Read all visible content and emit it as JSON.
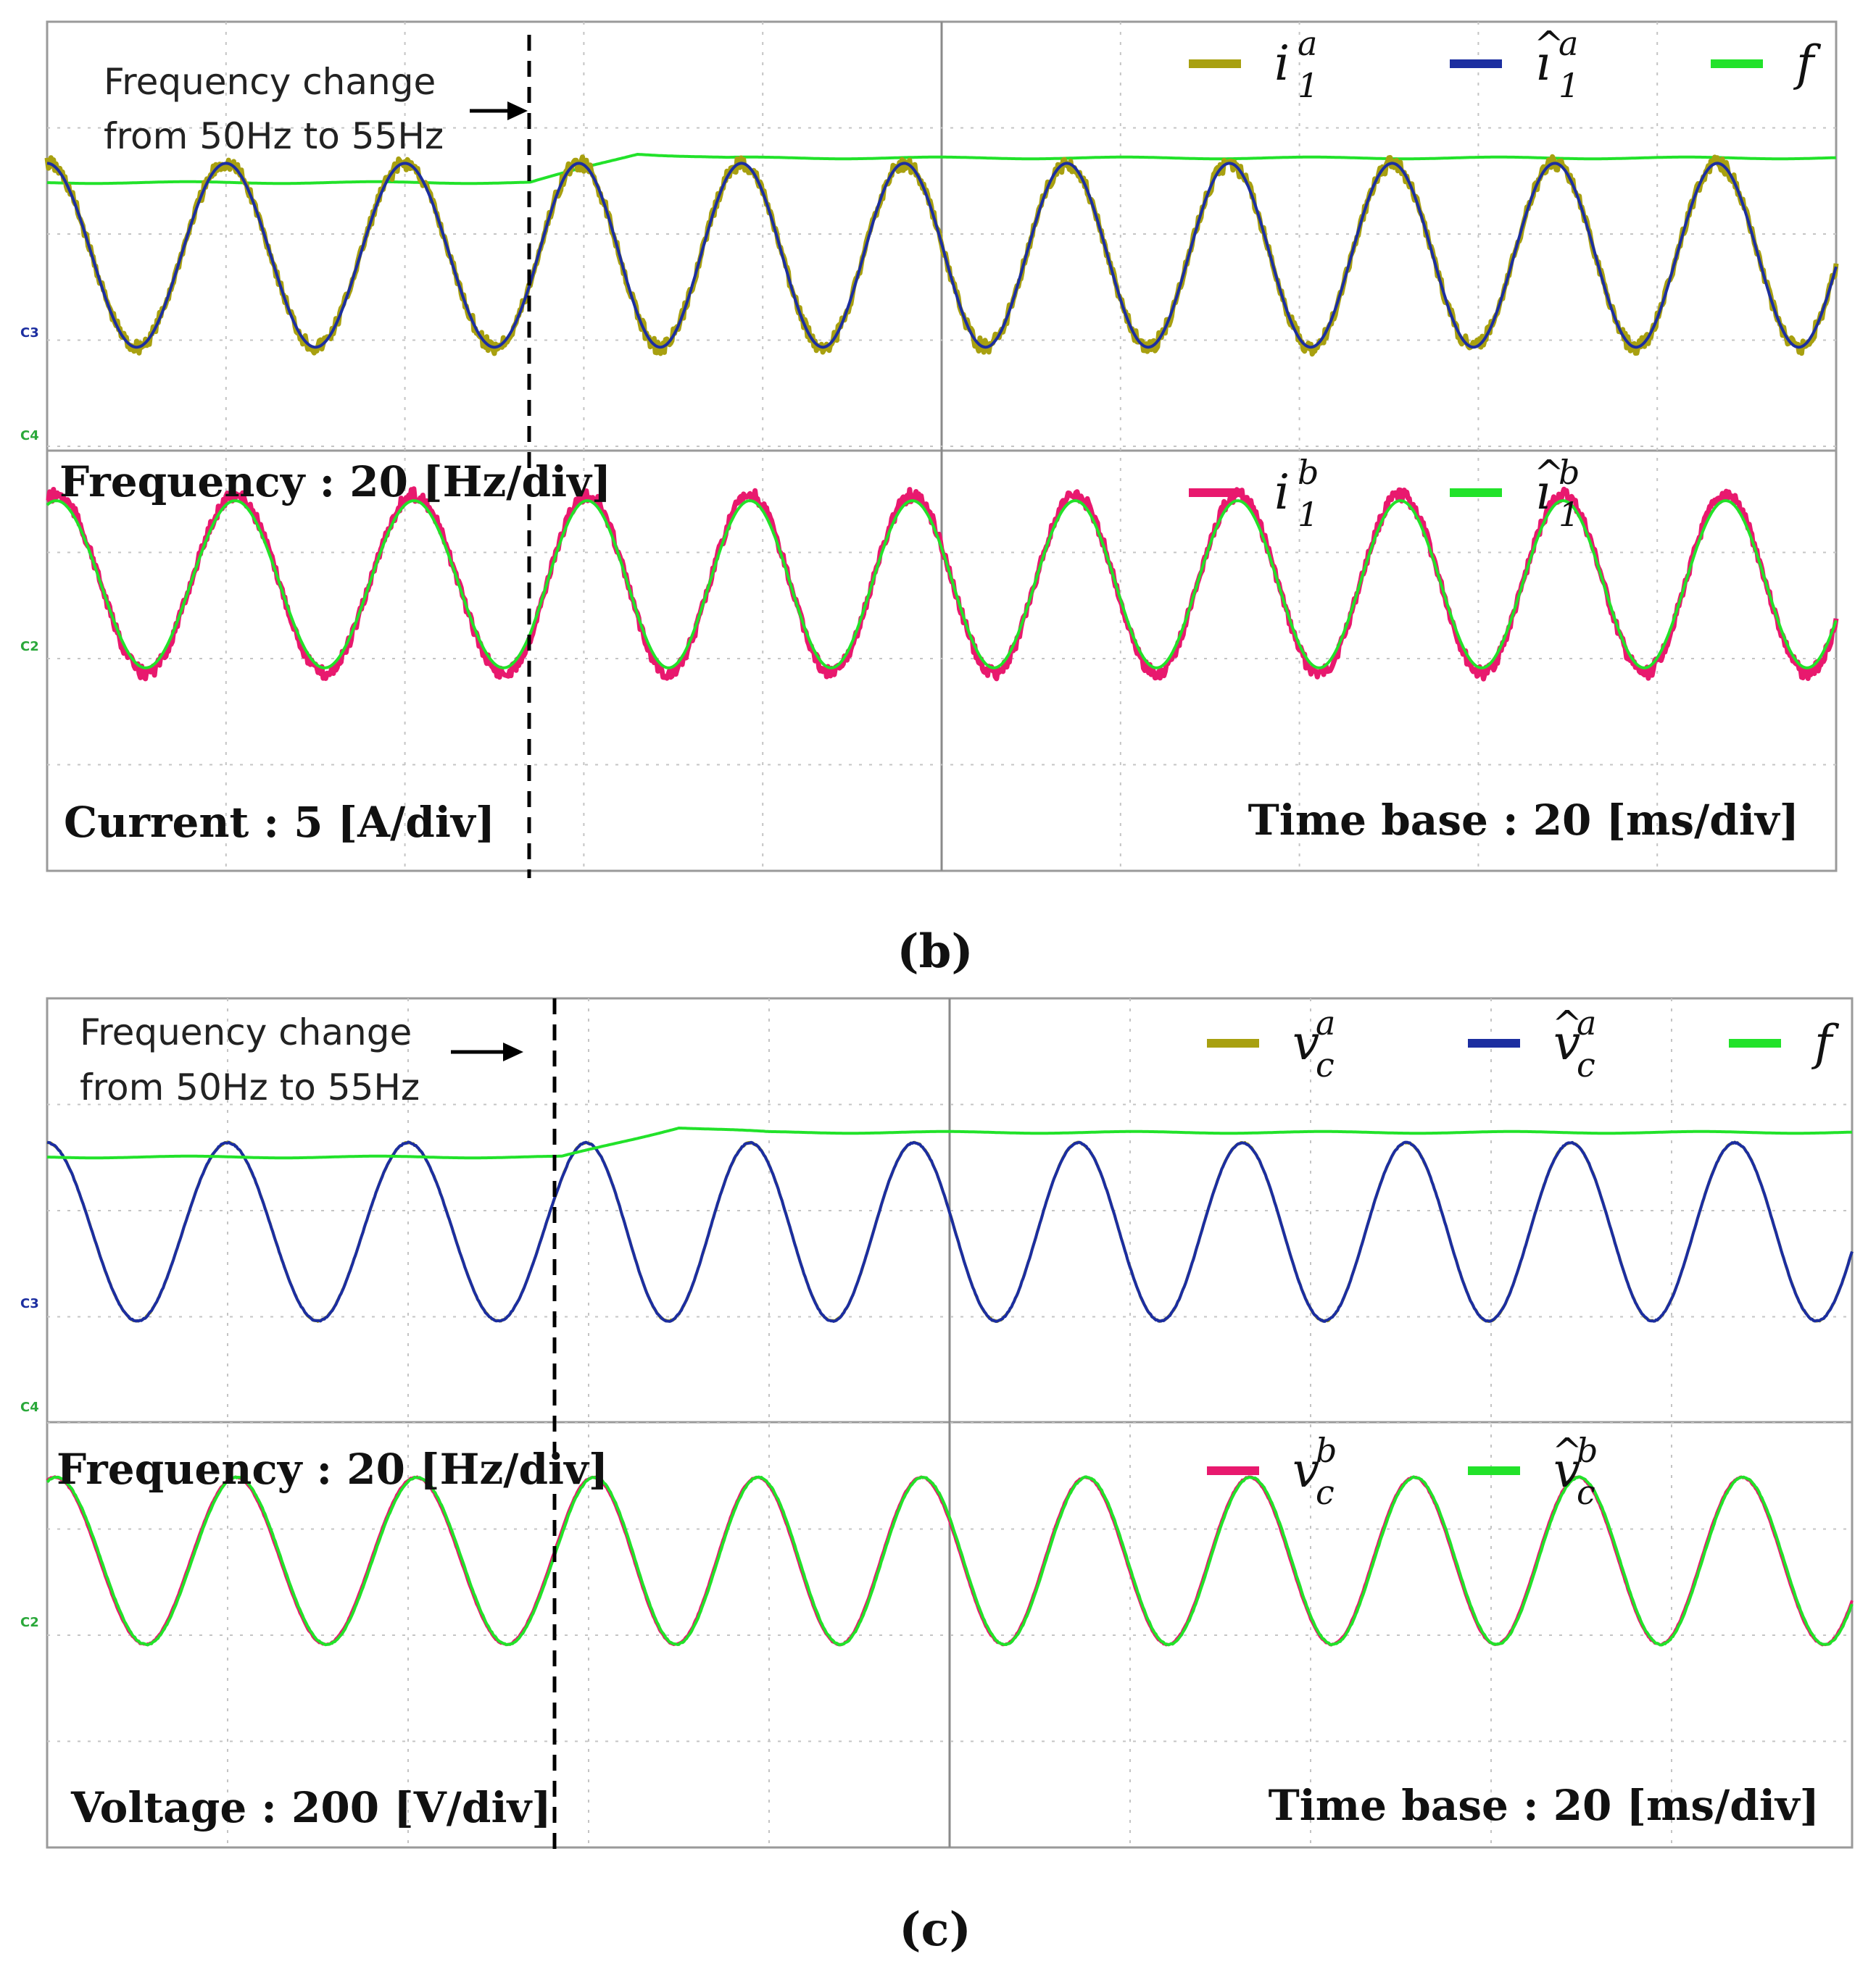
{
  "colors": {
    "olive": "#a8a010",
    "blue": "#1c2ea0",
    "green": "#22e22a",
    "magenta": "#e8196e",
    "grid": "#aaaaaa",
    "frame": "#9a9a9a"
  },
  "chart_data": [
    {
      "type": "line",
      "caption": "(b)",
      "annotation_line1": "Frequency change",
      "annotation_line2": "from 50Hz to 55Hz",
      "scale_frequency": "Frequency : 20 [Hz/div]",
      "scale_amplitude": "Current : 5 [A/div]",
      "time_base": "Time base : 20 [ms/div]",
      "channel_labels": [
        "C3",
        "C4",
        "C2"
      ],
      "frequency_change": {
        "from_hz": 50,
        "to_hz": 55,
        "time_ms": 54
      },
      "x_range_ms": [
        0,
        200
      ],
      "legend_top": [
        {
          "symbol": "i",
          "sup": "a",
          "sub": "1",
          "hat": false,
          "color": "olive"
        },
        {
          "symbol": "ı",
          "sup": "a",
          "sub": "1",
          "hat": true,
          "color": "blue"
        },
        {
          "symbol": "f",
          "sup": "",
          "sub": "",
          "hat": false,
          "color": "green"
        }
      ],
      "legend_bottom": [
        {
          "symbol": "i",
          "sup": "b",
          "sub": "1",
          "hat": false,
          "color": "magenta"
        },
        {
          "symbol": "ı",
          "sup": "b",
          "sub": "1",
          "hat": true,
          "color": "green"
        }
      ],
      "series": [
        {
          "name": "f",
          "color": "green",
          "kind": "freq"
        },
        {
          "name": "i1a",
          "color": "olive",
          "kind": "wave",
          "offset_div": 2.2,
          "amp_div": 1.65,
          "phase": 1.571,
          "noise": 0.25
        },
        {
          "name": "i1a_hat",
          "color": "blue",
          "kind": "wave",
          "offset_div": 2.2,
          "amp_div": 1.65,
          "phase": 1.571,
          "noise": 0.0
        },
        {
          "name": "i1b",
          "color": "magenta",
          "kind": "wave",
          "offset_div": 5.3,
          "amp_div": 1.6,
          "phase": 1.25,
          "noise": 0.22
        },
        {
          "name": "i1b_hat",
          "color": "green",
          "kind": "wave",
          "offset_div": 5.3,
          "amp_div": 1.5,
          "phase": 1.25,
          "noise": 0.0
        }
      ]
    },
    {
      "type": "line",
      "caption": "(c)",
      "annotation_line1": "Frequency change",
      "annotation_line2": "from 50Hz to 55Hz",
      "scale_frequency": "Frequency : 20 [Hz/div]",
      "scale_amplitude": "Voltage : 200 [V/div]",
      "time_base": "Time base : 20 [ms/div]",
      "channel_labels": [
        "C3",
        "C4",
        "C2"
      ],
      "frequency_change": {
        "from_hz": 50,
        "to_hz": 55,
        "time_ms": 57
      },
      "x_range_ms": [
        0,
        200
      ],
      "legend_top": [
        {
          "symbol": "v",
          "sup": "a",
          "sub": "c",
          "hat": false,
          "color": "olive"
        },
        {
          "symbol": "v",
          "sup": "a",
          "sub": "c",
          "hat": true,
          "color": "blue"
        },
        {
          "symbol": "f",
          "sup": "",
          "sub": "",
          "hat": false,
          "color": "green"
        }
      ],
      "legend_bottom": [
        {
          "symbol": "v",
          "sup": "b",
          "sub": "c",
          "hat": false,
          "color": "magenta"
        },
        {
          "symbol": "v",
          "sup": "b",
          "sub": "c",
          "hat": true,
          "color": "green"
        }
      ],
      "series": [
        {
          "name": "vca",
          "color": "olive",
          "kind": "wave",
          "offset_div": 2.2,
          "amp_div": 1.6,
          "phase": 1.571,
          "noise": 0.02
        },
        {
          "name": "vca_hat",
          "color": "blue",
          "kind": "wave",
          "offset_div": 2.2,
          "amp_div": 1.6,
          "phase": 1.571,
          "noise": 0.02
        },
        {
          "name": "f",
          "color": "green",
          "kind": "freq"
        },
        {
          "name": "vcb",
          "color": "magenta",
          "kind": "wave",
          "offset_div": 5.3,
          "amp_div": 1.5,
          "phase": 1.3,
          "noise": 0.02
        },
        {
          "name": "vcb_hat",
          "color": "green",
          "kind": "wave",
          "offset_div": 5.3,
          "amp_div": 1.5,
          "phase": 1.25,
          "noise": 0.02
        }
      ]
    }
  ]
}
